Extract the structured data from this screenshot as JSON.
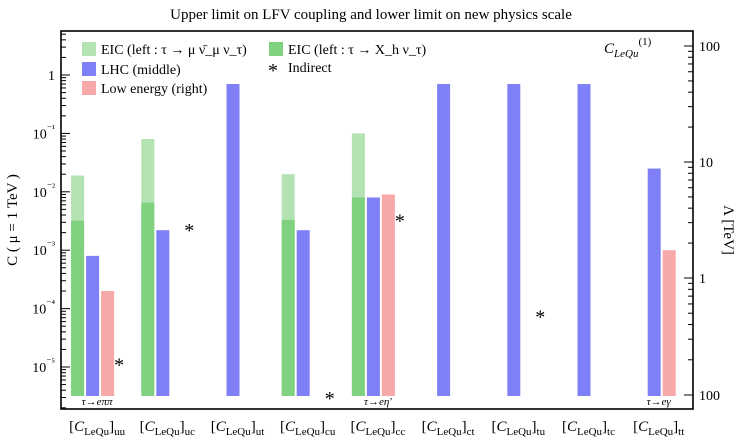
{
  "chart_data": {
    "type": "bar",
    "title": "Upper limit on LFV coupling and lower limit on new physics scale",
    "ylabel": "C ( μ = 1 TeV )",
    "y2label": "Λ [TeV]",
    "corner_label": "C_LeQu(1)",
    "yscale": "log",
    "ylim": [
      3e-06,
      10
    ],
    "yticks": [
      {
        "v": 1e-05,
        "label": "10⁻⁵"
      },
      {
        "v": 0.0001,
        "label": "10⁻⁴"
      },
      {
        "v": 0.001,
        "label": "10⁻³"
      },
      {
        "v": 0.01,
        "label": "10⁻²"
      },
      {
        "v": 0.1,
        "label": "10⁻¹"
      },
      {
        "v": 1,
        "label": "1"
      }
    ],
    "y2ticks": [
      {
        "label": "100",
        "lambda": 100
      },
      {
        "label": "10",
        "lambda": 10
      },
      {
        "label": "1",
        "lambda": 1
      },
      {
        "label": "100",
        "lambda": 100
      }
    ],
    "categories": [
      {
        "base": "C",
        "sub": "LeQu",
        "post": "uu",
        "note": "τ→eππ"
      },
      {
        "base": "C",
        "sub": "LeQu",
        "post": "uc",
        "note": ""
      },
      {
        "base": "C",
        "sub": "LeQu",
        "post": "ut",
        "note": ""
      },
      {
        "base": "C",
        "sub": "LeQu",
        "post": "cu",
        "note": ""
      },
      {
        "base": "C",
        "sub": "LeQu",
        "post": "cc",
        "note": "τ→eη′"
      },
      {
        "base": "C",
        "sub": "LeQu",
        "post": "ct",
        "note": ""
      },
      {
        "base": "C",
        "sub": "LeQu",
        "post": "tu",
        "note": ""
      },
      {
        "base": "C",
        "sub": "LeQu",
        "post": "tc",
        "note": ""
      },
      {
        "base": "C",
        "sub": "LeQu",
        "post": "tt",
        "note": "τ→eγ"
      }
    ],
    "series": [
      {
        "name": "EIC (left : τ → μ ν̄_μ ν_τ)",
        "key": "eic_mu",
        "color": "#b3e2b3",
        "values": [
          0.019,
          0.08,
          null,
          0.02,
          0.1,
          null,
          null,
          null,
          null
        ]
      },
      {
        "name": "EIC (left : τ → X_h ν_τ)",
        "key": "eic_h",
        "color": "#7fd17f",
        "values": [
          0.0032,
          0.0065,
          null,
          0.0033,
          0.008,
          null,
          null,
          null,
          null
        ]
      },
      {
        "name": "LHC (middle)",
        "key": "lhc",
        "color": "#7f7ff7",
        "values": [
          0.0008,
          0.0022,
          0.7,
          0.0022,
          0.008,
          0.7,
          0.7,
          0.7,
          0.025
        ]
      },
      {
        "name": "Low energy (right)",
        "key": "low",
        "color": "#f7a8a8",
        "values": [
          0.0002,
          null,
          null,
          null,
          0.009,
          null,
          null,
          null,
          0.001
        ]
      }
    ],
    "indirect": {
      "name": "Indirect",
      "color": "#f07f3f",
      "values": [
        1.2e-05,
        0.0024,
        null,
        3.2e-06,
        0.0035,
        null,
        8e-05,
        null,
        null
      ]
    }
  }
}
